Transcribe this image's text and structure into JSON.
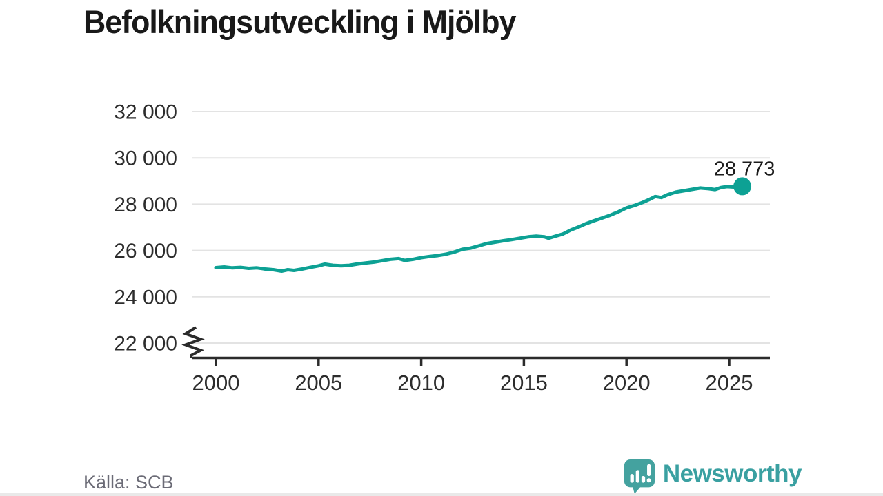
{
  "title": "Befolkningsutveckling i Mjölby",
  "source": {
    "label": "Källa: SCB"
  },
  "brand": {
    "name": "Newsworthy",
    "wordmark_color": "#3aa0a1",
    "icon_color": "#44a29f",
    "icon": "newsworthy-logo-icon"
  },
  "chart_data": {
    "type": "line",
    "title": "Befolkningsutveckling i Mjölby",
    "xlabel": "",
    "ylabel": "",
    "ylim": [
      22000,
      32000
    ],
    "xlim": [
      1998.8,
      2027
    ],
    "grid": true,
    "legend_position": "none",
    "axis_break_bottom_left": true,
    "line_color": "#0da194",
    "yticks": [
      {
        "value": 22000,
        "label": "22 000"
      },
      {
        "value": 24000,
        "label": "24 000"
      },
      {
        "value": 26000,
        "label": "26 000"
      },
      {
        "value": 28000,
        "label": "28 000"
      },
      {
        "value": 30000,
        "label": "30 000"
      },
      {
        "value": 32000,
        "label": "32 000"
      }
    ],
    "xticks": [
      {
        "value": 2000,
        "label": "2000"
      },
      {
        "value": 2005,
        "label": "2005"
      },
      {
        "value": 2010,
        "label": "2010"
      },
      {
        "value": 2015,
        "label": "2015"
      },
      {
        "value": 2020,
        "label": "2020"
      },
      {
        "value": 2025,
        "label": "2025"
      }
    ],
    "end_label": "28 773",
    "end_point": {
      "x": 2025.64,
      "y": 28773
    },
    "series": [
      {
        "name": "Befolkning i Mjölby",
        "color": "#0da194",
        "points": [
          [
            2000.0,
            25260
          ],
          [
            2000.4,
            25290
          ],
          [
            2000.8,
            25250
          ],
          [
            2001.2,
            25270
          ],
          [
            2001.6,
            25230
          ],
          [
            2002.0,
            25250
          ],
          [
            2002.4,
            25200
          ],
          [
            2002.8,
            25170
          ],
          [
            2003.2,
            25110
          ],
          [
            2003.5,
            25170
          ],
          [
            2003.8,
            25140
          ],
          [
            2004.2,
            25200
          ],
          [
            2004.6,
            25270
          ],
          [
            2005.0,
            25340
          ],
          [
            2005.3,
            25410
          ],
          [
            2005.7,
            25360
          ],
          [
            2006.1,
            25340
          ],
          [
            2006.5,
            25360
          ],
          [
            2006.9,
            25420
          ],
          [
            2007.3,
            25460
          ],
          [
            2007.7,
            25500
          ],
          [
            2008.1,
            25560
          ],
          [
            2008.5,
            25620
          ],
          [
            2008.9,
            25650
          ],
          [
            2009.2,
            25570
          ],
          [
            2009.6,
            25620
          ],
          [
            2010.0,
            25690
          ],
          [
            2010.4,
            25740
          ],
          [
            2010.8,
            25780
          ],
          [
            2011.2,
            25840
          ],
          [
            2011.6,
            25930
          ],
          [
            2012.0,
            26050
          ],
          [
            2012.4,
            26100
          ],
          [
            2012.8,
            26200
          ],
          [
            2013.2,
            26300
          ],
          [
            2013.6,
            26360
          ],
          [
            2014.0,
            26420
          ],
          [
            2014.4,
            26470
          ],
          [
            2014.8,
            26530
          ],
          [
            2015.2,
            26590
          ],
          [
            2015.6,
            26620
          ],
          [
            2016.0,
            26590
          ],
          [
            2016.2,
            26530
          ],
          [
            2016.5,
            26610
          ],
          [
            2016.9,
            26710
          ],
          [
            2017.3,
            26890
          ],
          [
            2017.7,
            27030
          ],
          [
            2018.0,
            27150
          ],
          [
            2018.4,
            27280
          ],
          [
            2018.8,
            27400
          ],
          [
            2019.2,
            27520
          ],
          [
            2019.6,
            27670
          ],
          [
            2020.0,
            27840
          ],
          [
            2020.4,
            27950
          ],
          [
            2020.8,
            28080
          ],
          [
            2021.1,
            28200
          ],
          [
            2021.4,
            28330
          ],
          [
            2021.7,
            28290
          ],
          [
            2022.0,
            28410
          ],
          [
            2022.4,
            28520
          ],
          [
            2022.8,
            28580
          ],
          [
            2023.2,
            28640
          ],
          [
            2023.6,
            28700
          ],
          [
            2024.0,
            28670
          ],
          [
            2024.3,
            28630
          ],
          [
            2024.6,
            28720
          ],
          [
            2024.9,
            28760
          ],
          [
            2025.2,
            28740
          ],
          [
            2025.45,
            28770
          ],
          [
            2025.64,
            28773
          ]
        ]
      }
    ]
  }
}
